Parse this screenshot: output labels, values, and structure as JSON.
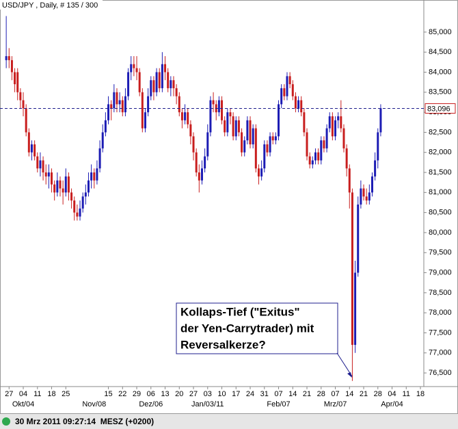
{
  "chart_data": {
    "type": "candlestick",
    "title": "USD/JPY , Daily, # 135 / 300",
    "up_color": "#1c1cb4",
    "down_color": "#c81e1e",
    "ylim": [
      76.16,
      85.8
    ],
    "xlim": [
      -2.2,
      147.2
    ],
    "yticks": [
      {
        "value": 76.5,
        "label": "76,500"
      },
      {
        "value": 77,
        "label": "77,000"
      },
      {
        "value": 77.5,
        "label": "77,500"
      },
      {
        "value": 78,
        "label": "78,000"
      },
      {
        "value": 78.5,
        "label": "78,500"
      },
      {
        "value": 79,
        "label": "79,000"
      },
      {
        "value": 79.5,
        "label": "79,500"
      },
      {
        "value": 80,
        "label": "80,000"
      },
      {
        "value": 80.5,
        "label": "80,500"
      },
      {
        "value": 81,
        "label": "81,000"
      },
      {
        "value": 81.5,
        "label": "81,500"
      },
      {
        "value": 82,
        "label": "82,000"
      },
      {
        "value": 82.5,
        "label": "82,500"
      },
      {
        "value": 83,
        "label": "83,000"
      },
      {
        "value": 83.5,
        "label": "83,500"
      },
      {
        "value": 84,
        "label": "84,000"
      },
      {
        "value": 84.5,
        "label": "84,500"
      },
      {
        "value": 85,
        "label": "85,000"
      }
    ],
    "xticks": [
      {
        "value": 1,
        "label": "27"
      },
      {
        "value": 6,
        "label": "04"
      },
      {
        "value": 11,
        "label": "11"
      },
      {
        "value": 16,
        "label": "18"
      },
      {
        "value": 21,
        "label": "25"
      },
      {
        "value": 36,
        "label": "15"
      },
      {
        "value": 41,
        "label": "22"
      },
      {
        "value": 46,
        "label": "29"
      },
      {
        "value": 51,
        "label": "06"
      },
      {
        "value": 56,
        "label": "13"
      },
      {
        "value": 61,
        "label": "20"
      },
      {
        "value": 66,
        "label": "27"
      },
      {
        "value": 71,
        "label": "03"
      },
      {
        "value": 76,
        "label": "10"
      },
      {
        "value": 81,
        "label": "17"
      },
      {
        "value": 86,
        "label": "24"
      },
      {
        "value": 91,
        "label": "31"
      },
      {
        "value": 96,
        "label": "07"
      },
      {
        "value": 101,
        "label": "14"
      },
      {
        "value": 106,
        "label": "21"
      },
      {
        "value": 111,
        "label": "28"
      },
      {
        "value": 116,
        "label": "07"
      },
      {
        "value": 121,
        "label": "14"
      },
      {
        "value": 126,
        "label": "21"
      },
      {
        "value": 131,
        "label": "28"
      },
      {
        "value": 136,
        "label": "04"
      },
      {
        "value": 141,
        "label": "11"
      },
      {
        "value": 146,
        "label": "18"
      }
    ],
    "month_ticks": [
      {
        "value": 6,
        "label": "Okt/04"
      },
      {
        "value": 31,
        "label": "Nov/08"
      },
      {
        "value": 51,
        "label": "Dez/06"
      },
      {
        "value": 71,
        "label": "Jan/03/11"
      },
      {
        "value": 96,
        "label": "Feb/07"
      },
      {
        "value": 116,
        "label": "Mrz/07"
      },
      {
        "value": 136,
        "label": "Apr/04"
      }
    ],
    "last_price": {
      "value": 83.096,
      "label": "83,096",
      "color": "#c81e1e",
      "line_color": "#1c1c8c"
    },
    "annotation": [
      "Kollaps-Tief (\"Exitus\"",
      "der Yen-Carrytrader) mit",
      "Reversalkerze?"
    ],
    "timestamp": "30 Mrz 2011 09:27:14  MESZ (+0200)",
    "ohlc": [
      [
        84.3,
        85.4,
        84.1,
        84.4
      ],
      [
        84.4,
        84.6,
        84.1,
        84.3
      ],
      [
        84.3,
        84.4,
        83.8,
        84.0
      ],
      [
        84.0,
        84.1,
        83.5,
        83.7
      ],
      [
        84.0,
        84.1,
        83.3,
        83.5
      ],
      [
        83.5,
        83.6,
        83.1,
        83.3
      ],
      [
        83.3,
        83.5,
        82.9,
        83.1
      ],
      [
        83.1,
        83.2,
        82.4,
        82.5
      ],
      [
        82.5,
        82.6,
        81.9,
        82.0
      ],
      [
        82.0,
        82.3,
        81.8,
        82.2
      ],
      [
        82.2,
        82.3,
        81.8,
        81.9
      ],
      [
        81.9,
        82.0,
        81.5,
        81.6
      ],
      [
        81.6,
        82.0,
        81.4,
        81.8
      ],
      [
        81.8,
        81.9,
        81.3,
        81.5
      ],
      [
        81.5,
        81.7,
        81.2,
        81.4
      ],
      [
        81.4,
        81.7,
        81.1,
        81.5
      ],
      [
        81.5,
        81.6,
        81.0,
        81.2
      ],
      [
        81.2,
        81.3,
        80.8,
        81.0
      ],
      [
        81.0,
        81.5,
        80.9,
        81.3
      ],
      [
        81.3,
        81.4,
        80.9,
        81.1
      ],
      [
        81.1,
        81.3,
        80.7,
        81.0
      ],
      [
        81.0,
        81.6,
        80.9,
        81.4
      ],
      [
        81.4,
        81.5,
        80.8,
        81.0
      ],
      [
        81.0,
        81.1,
        80.6,
        80.8
      ],
      [
        80.8,
        80.9,
        80.3,
        80.5
      ],
      [
        80.5,
        80.7,
        80.3,
        80.4
      ],
      [
        80.4,
        80.8,
        80.3,
        80.6
      ],
      [
        80.6,
        81.0,
        80.5,
        80.9
      ],
      [
        80.9,
        81.2,
        80.7,
        81.0
      ],
      [
        81.0,
        81.5,
        80.9,
        81.3
      ],
      [
        81.3,
        81.7,
        81.1,
        81.5
      ],
      [
        81.5,
        81.6,
        81.1,
        81.3
      ],
      [
        81.3,
        81.8,
        81.2,
        81.6
      ],
      [
        81.6,
        82.3,
        81.5,
        82.1
      ],
      [
        82.1,
        82.7,
        82.0,
        82.5
      ],
      [
        82.5,
        83.0,
        82.4,
        82.8
      ],
      [
        82.8,
        83.4,
        82.7,
        83.2
      ],
      [
        83.2,
        83.3,
        82.8,
        83.1
      ],
      [
        83.1,
        83.7,
        83.0,
        83.5
      ],
      [
        83.5,
        83.6,
        83.0,
        83.2
      ],
      [
        83.2,
        83.5,
        83.0,
        83.3
      ],
      [
        83.3,
        83.4,
        82.9,
        83.0
      ],
      [
        83.0,
        83.6,
        82.9,
        83.4
      ],
      [
        83.4,
        84.1,
        83.3,
        84.0
      ],
      [
        84.0,
        84.4,
        83.8,
        84.2
      ],
      [
        84.2,
        84.4,
        83.9,
        84.1
      ],
      [
        84.1,
        84.4,
        83.8,
        84.0
      ],
      [
        84.0,
        84.1,
        83.4,
        83.5
      ],
      [
        83.5,
        83.6,
        82.5,
        82.6
      ],
      [
        82.6,
        83.1,
        82.5,
        83.0
      ],
      [
        83.0,
        83.6,
        82.9,
        83.4
      ],
      [
        83.4,
        83.9,
        83.3,
        83.8
      ],
      [
        83.8,
        83.9,
        83.3,
        83.5
      ],
      [
        83.5,
        84.1,
        83.4,
        84.0
      ],
      [
        84.0,
        84.1,
        83.5,
        83.6
      ],
      [
        83.6,
        84.5,
        83.5,
        84.2
      ],
      [
        84.2,
        84.4,
        83.8,
        84.0
      ],
      [
        84.0,
        84.1,
        83.5,
        83.6
      ],
      [
        83.6,
        83.9,
        83.4,
        83.8
      ],
      [
        83.8,
        83.9,
        83.4,
        83.6
      ],
      [
        83.6,
        83.7,
        83.2,
        83.4
      ],
      [
        83.4,
        83.5,
        82.9,
        83.0
      ],
      [
        83.0,
        83.1,
        82.6,
        82.8
      ],
      [
        82.8,
        83.2,
        82.7,
        83.0
      ],
      [
        83.0,
        83.1,
        82.6,
        82.7
      ],
      [
        82.7,
        82.8,
        82.2,
        82.4
      ],
      [
        82.4,
        82.5,
        81.8,
        82.0
      ],
      [
        82.0,
        82.1,
        81.4,
        81.5
      ],
      [
        81.5,
        81.7,
        81.0,
        81.3
      ],
      [
        81.3,
        81.8,
        81.2,
        81.6
      ],
      [
        81.6,
        82.1,
        81.5,
        81.9
      ],
      [
        81.9,
        82.7,
        81.8,
        82.5
      ],
      [
        82.5,
        83.4,
        82.4,
        83.3
      ],
      [
        83.3,
        83.5,
        83.0,
        83.2
      ],
      [
        83.2,
        83.3,
        82.8,
        83.0
      ],
      [
        83.0,
        83.4,
        82.9,
        83.3
      ],
      [
        83.3,
        83.4,
        82.7,
        82.8
      ],
      [
        82.8,
        82.9,
        82.4,
        82.5
      ],
      [
        82.5,
        83.1,
        82.4,
        83.0
      ],
      [
        83.0,
        83.1,
        82.7,
        82.9
      ],
      [
        82.9,
        83.0,
        82.3,
        82.4
      ],
      [
        82.4,
        82.9,
        82.3,
        82.8
      ],
      [
        82.8,
        82.9,
        82.4,
        82.5
      ],
      [
        82.5,
        82.6,
        81.9,
        82.0
      ],
      [
        82.0,
        82.4,
        81.9,
        82.3
      ],
      [
        82.3,
        82.9,
        82.2,
        82.8
      ],
      [
        82.8,
        82.9,
        82.1,
        82.2
      ],
      [
        82.2,
        82.7,
        82.1,
        82.6
      ],
      [
        82.6,
        82.7,
        81.5,
        81.6
      ],
      [
        81.6,
        81.7,
        81.2,
        81.4
      ],
      [
        81.4,
        81.8,
        81.3,
        81.6
      ],
      [
        81.6,
        82.3,
        81.5,
        82.2
      ],
      [
        82.2,
        82.3,
        81.9,
        82.0
      ],
      [
        82.0,
        82.5,
        81.9,
        82.4
      ],
      [
        82.4,
        82.5,
        82.2,
        82.3
      ],
      [
        82.3,
        82.5,
        82.2,
        82.4
      ],
      [
        82.4,
        83.3,
        82.3,
        83.2
      ],
      [
        83.2,
        83.7,
        83.1,
        83.6
      ],
      [
        83.6,
        83.7,
        83.3,
        83.4
      ],
      [
        83.4,
        84.0,
        83.3,
        83.9
      ],
      [
        83.9,
        84.0,
        83.6,
        83.7
      ],
      [
        83.7,
        83.8,
        83.3,
        83.4
      ],
      [
        83.4,
        83.5,
        83.0,
        83.1
      ],
      [
        83.1,
        83.4,
        83.0,
        83.3
      ],
      [
        83.3,
        83.4,
        82.9,
        83.0
      ],
      [
        83.0,
        83.1,
        82.4,
        82.5
      ],
      [
        82.5,
        82.6,
        81.8,
        81.9
      ],
      [
        81.9,
        82.0,
        81.6,
        81.7
      ],
      [
        81.7,
        81.9,
        81.6,
        81.8
      ],
      [
        81.8,
        82.1,
        81.7,
        82.0
      ],
      [
        82.0,
        82.1,
        81.7,
        81.8
      ],
      [
        81.8,
        82.4,
        81.7,
        82.3
      ],
      [
        82.3,
        82.4,
        82.0,
        82.1
      ],
      [
        82.1,
        82.7,
        82.0,
        82.6
      ],
      [
        82.6,
        83.0,
        82.5,
        82.9
      ],
      [
        82.9,
        83.0,
        82.3,
        82.4
      ],
      [
        82.4,
        82.9,
        82.3,
        82.8
      ],
      [
        82.8,
        83.0,
        82.6,
        82.9
      ],
      [
        82.9,
        83.3,
        82.5,
        82.6
      ],
      [
        82.6,
        82.7,
        82.0,
        82.1
      ],
      [
        82.1,
        82.2,
        81.4,
        81.6
      ],
      [
        81.6,
        81.7,
        80.6,
        81.0
      ],
      [
        81.0,
        81.1,
        76.3,
        77.2
      ],
      [
        77.2,
        79.3,
        77.0,
        79.0
      ],
      [
        79.0,
        80.9,
        78.9,
        80.7
      ],
      [
        80.7,
        81.3,
        80.6,
        81.1
      ],
      [
        81.1,
        81.2,
        80.8,
        80.9
      ],
      [
        80.9,
        81.1,
        80.7,
        80.8
      ],
      [
        80.8,
        81.2,
        80.7,
        81.0
      ],
      [
        81.0,
        81.5,
        80.9,
        81.4
      ],
      [
        81.4,
        82.0,
        81.3,
        81.8
      ],
      [
        81.8,
        82.6,
        81.6,
        82.5
      ],
      [
        82.5,
        83.2,
        82.4,
        83.1
      ]
    ]
  }
}
